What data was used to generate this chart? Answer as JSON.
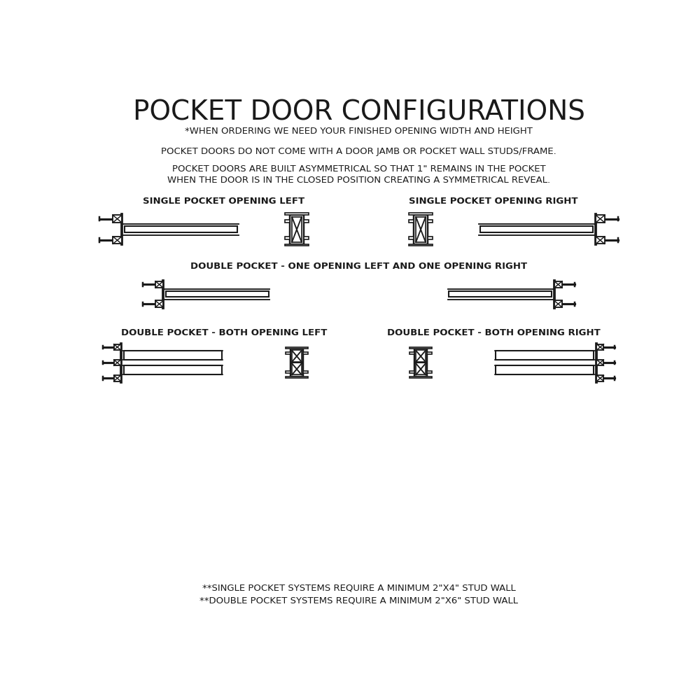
{
  "title": "POCKET DOOR CONFIGURATIONS",
  "subtitle": "*WHEN ORDERING WE NEED YOUR FINISHED OPENING WIDTH AND HEIGHT",
  "note1": "POCKET DOORS DO NOT COME WITH A DOOR JAMB OR POCKET WALL STUDS/FRAME.",
  "note2_line1": "POCKET DOORS ARE BUILT ASYMMETRICAL SO THAT 1\" REMAINS IN THE POCKET",
  "note2_line2": "WHEN THE DOOR IS IN THE CLOSED POSITION CREATING A SYMMETRICAL REVEAL.",
  "label_row1_left": "SINGLE POCKET OPENING LEFT",
  "label_row1_right": "SINGLE POCKET OPENING RIGHT",
  "label_row2": "DOUBLE POCKET - ONE OPENING LEFT AND ONE OPENING RIGHT",
  "label_row3_left": "DOUBLE POCKET - BOTH OPENING LEFT",
  "label_row3_right": "DOUBLE POCKET - BOTH OPENING RIGHT",
  "footer1": "**SINGLE POCKET SYSTEMS REQUIRE A MINIMUM 2\"X4\" STUD WALL",
  "footer2": "**DOUBLE POCKET SYSTEMS REQUIRE A MINIMUM 2\"X6\" STUD WALL",
  "bg_color": "#ffffff",
  "line_color": "#1a1a1a",
  "lw": 1.5
}
